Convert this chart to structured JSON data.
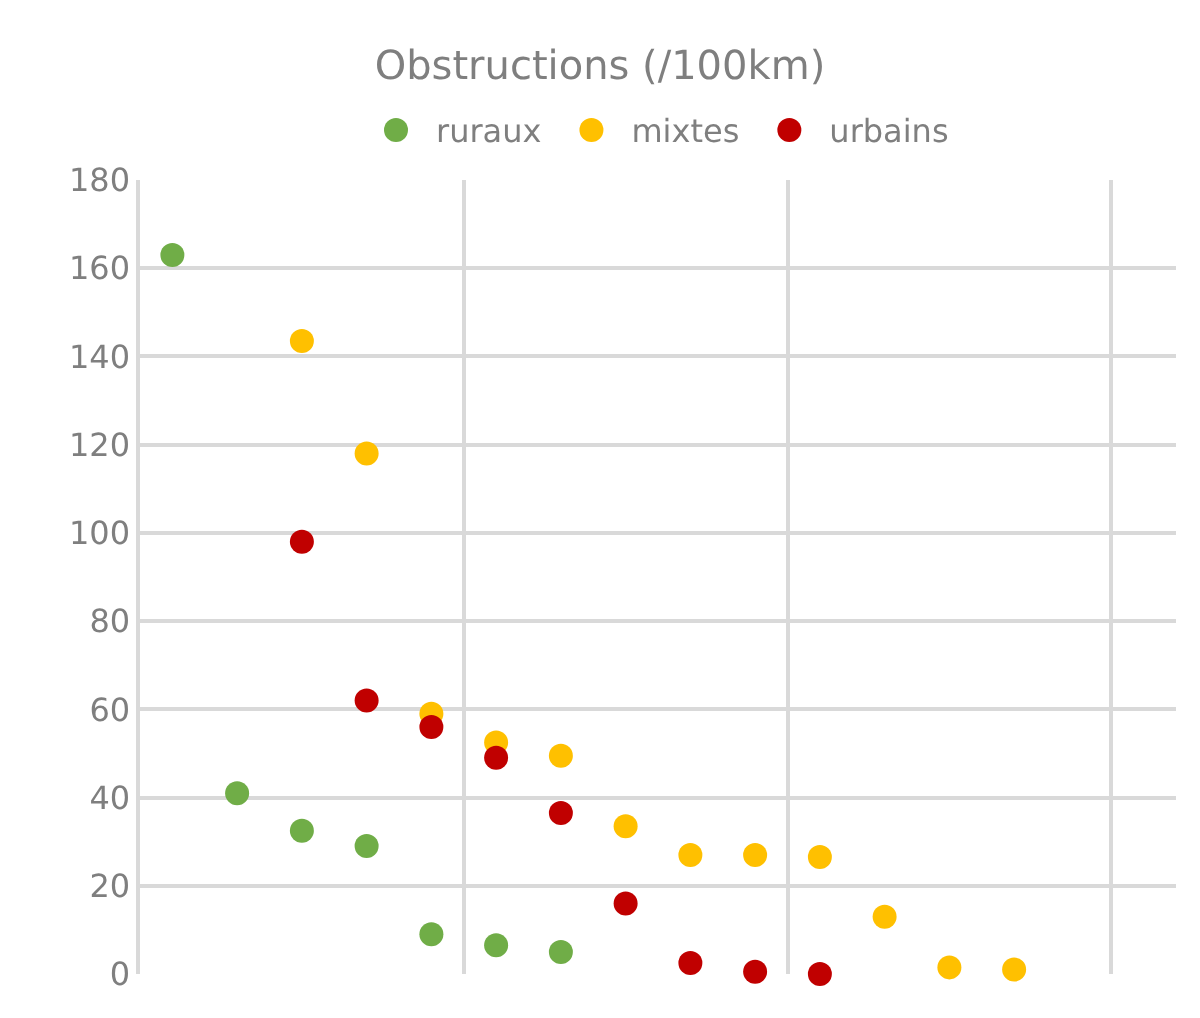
{
  "chart_data": {
    "type": "scatter",
    "title": "Obstructions (/100km)",
    "categories": [
      null,
      null,
      null,
      null,
      null,
      null,
      null,
      null,
      null,
      null,
      null,
      null,
      null,
      null,
      null,
      null
    ],
    "series": [
      {
        "name": "ruraux",
        "color": "#70ad47",
        "values": [
          163,
          41,
          32.5,
          29,
          9,
          6.5,
          5,
          null,
          null,
          null,
          null,
          null,
          null,
          null,
          null,
          null
        ]
      },
      {
        "name": "mixtes",
        "color": "#ffc000",
        "values": [
          null,
          null,
          143.5,
          118,
          59,
          52.5,
          49.5,
          33.5,
          27,
          27,
          26.5,
          13,
          1.5,
          1,
          null,
          null
        ]
      },
      {
        "name": "urbains",
        "color": "#c00000",
        "values": [
          null,
          null,
          98,
          62,
          56,
          49,
          36.5,
          16,
          2.5,
          0.5,
          0,
          null,
          null,
          null,
          null,
          null
        ]
      }
    ],
    "ylim": [
      0,
      180
    ],
    "yticks": [
      0,
      20,
      40,
      60,
      80,
      100,
      120,
      140,
      160,
      180
    ],
    "grid": true,
    "legend": "top",
    "marker": "circle"
  }
}
